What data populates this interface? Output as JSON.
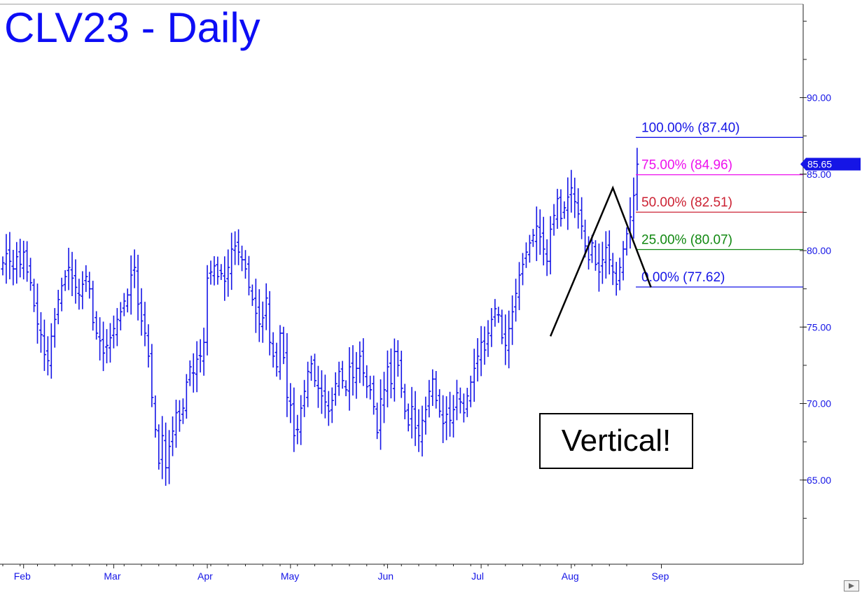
{
  "title": "CLV23 - Daily",
  "note": "Vertical!",
  "colors": {
    "bars": "#1515e6",
    "axis": "#1515e6",
    "fib_100": "#1515e6",
    "fib_75": "#ee11ee",
    "fib_50": "#cc2233",
    "fib_25": "#118811",
    "fib_0": "#1515e6",
    "pattern": "#000000",
    "last_price_tag": "#1515e6"
  },
  "chart_data": {
    "type": "ohlc",
    "title": "CLV23 - Daily",
    "xlabel": "",
    "ylabel": "",
    "ylim": [
      60.5,
      97
    ],
    "y_ticks": [
      "65.00",
      "70.00",
      "75.00",
      "80.00",
      "85.00",
      "90.00"
    ],
    "x_ticks": [
      "Feb",
      "Mar",
      "Apr",
      "May",
      "Jun",
      "Jul",
      "Aug",
      "Sep"
    ],
    "last_price": "85.65",
    "closes": [
      79.2,
      79.8,
      79.3,
      78.8,
      79.6,
      79.1,
      79.9,
      78.6,
      77.9,
      76.4,
      75.2,
      74.5,
      73.2,
      72.8,
      74.4,
      75.5,
      76.8,
      77.7,
      78.3,
      78.9,
      78.2,
      77.6,
      77.1,
      77.8,
      78.3,
      77.5,
      75.3,
      74.6,
      74.1,
      73.3,
      73.8,
      74.3,
      74.9,
      75.5,
      76.0,
      76.7,
      77.1,
      78.4,
      78.9,
      76.5,
      75.4,
      74.6,
      73.1,
      70.4,
      68.3,
      66.1,
      67.9,
      65.8,
      67.2,
      68.2,
      69.4,
      68.9,
      69.7,
      71.4,
      72.4,
      72.0,
      72.9,
      73.1,
      74.0,
      78.2,
      78.6,
      79.0,
      78.3,
      78.5,
      78.0,
      78.9,
      80.1,
      80.3,
      79.9,
      79.4,
      78.8,
      77.6,
      76.8,
      75.9,
      75.2,
      75.6,
      76.9,
      74.0,
      73.1,
      72.4,
      74.6,
      73.0,
      70.4,
      69.9,
      67.9,
      68.3,
      69.7,
      70.8,
      72.1,
      72.6,
      71.5,
      71.0,
      70.5,
      70.1,
      69.5,
      70.2,
      71.3,
      72.1,
      71.5,
      70.9,
      72.4,
      71.7,
      72.3,
      73.1,
      72.0,
      71.1,
      70.9,
      69.8,
      68.1,
      70.3,
      70.9,
      72.4,
      71.3,
      73.4,
      72.5,
      71.0,
      69.5,
      68.6,
      69.8,
      68.4,
      67.9,
      68.9,
      69.6,
      70.8,
      71.6,
      70.2,
      69.5,
      68.7,
      69.3,
      68.9,
      69.6,
      70.7,
      70.1,
      69.4,
      70.5,
      71.4,
      72.3,
      73.1,
      74.0,
      73.5,
      74.6,
      75.5,
      76.2,
      75.8,
      74.3,
      73.8,
      74.9,
      76.0,
      77.2,
      78.4,
      79.1,
      79.9,
      80.5,
      81.0,
      81.6,
      80.9,
      80.1,
      79.3,
      81.4,
      82.3,
      83.4,
      82.1,
      82.8,
      83.5,
      84.1,
      83.2,
      82.4,
      81.6,
      80.3,
      79.4,
      80.5,
      79.1,
      78.6,
      79.4,
      80.2,
      79.4,
      78.6,
      77.8,
      78.9,
      80.1,
      81.1,
      82.2,
      83.6,
      85.65
    ],
    "fib_levels": [
      {
        "label": "100.00% (87.40)",
        "value": 87.4
      },
      {
        "label": "75.00% (84.96)",
        "value": 84.96
      },
      {
        "label": "50.00% (82.51)",
        "value": 82.51
      },
      {
        "label": "25.00% (80.07)",
        "value": 80.07
      },
      {
        "label": "0.00% (77.62)",
        "value": 77.62
      }
    ],
    "pattern_points": [
      {
        "bar": 158,
        "price": 74.4
      },
      {
        "bar": 176,
        "price": 84.1
      },
      {
        "bar": 187,
        "price": 77.6
      }
    ],
    "grid": false,
    "legend": "none"
  }
}
